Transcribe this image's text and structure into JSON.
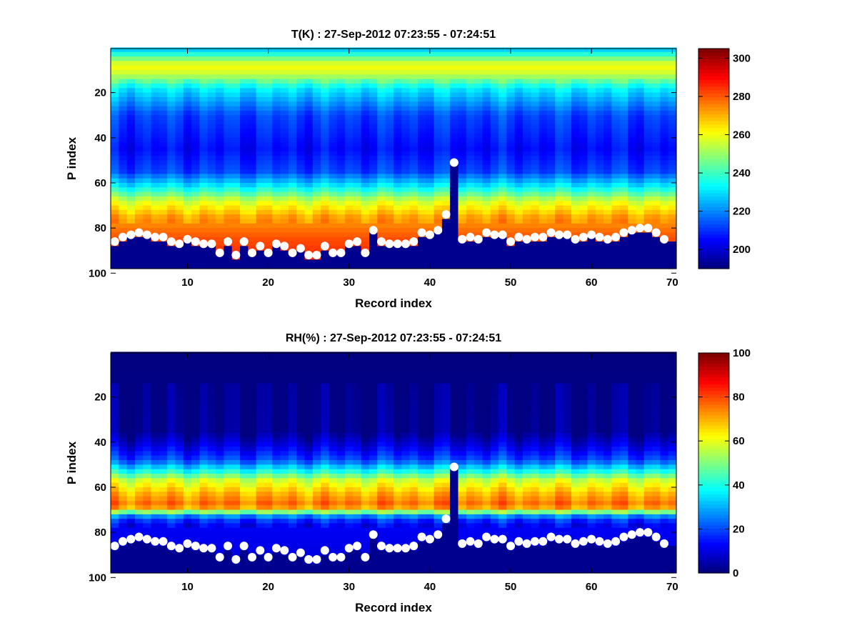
{
  "chart_data": [
    {
      "type": "heatmap",
      "title": "T(K) : 27-Sep-2012 07:23:55 - 07:24:51",
      "xlabel": "Record index",
      "ylabel": "P index",
      "xlim": [
        0.5,
        70.5
      ],
      "ylim": [
        100,
        0
      ],
      "y_reversed": true,
      "xticks": [
        "10",
        "20",
        "30",
        "40",
        "50",
        "60",
        "70"
      ],
      "yticks": [
        "20",
        "40",
        "60",
        "80",
        "100"
      ],
      "colorbar": {
        "range": [
          190,
          305
        ],
        "ticks": [
          "200",
          "220",
          "240",
          "260",
          "280",
          "300"
        ]
      },
      "colormap": "jet",
      "below_surface_color": "#00008f",
      "profile_structure": [
        {
          "p_index": 1,
          "value": 228
        },
        {
          "p_index": 8,
          "value": 262
        },
        {
          "p_index": 12,
          "value": 255
        },
        {
          "p_index": 18,
          "value": 232
        },
        {
          "p_index": 30,
          "value": 212
        },
        {
          "p_index": 45,
          "value": 205
        },
        {
          "p_index": 55,
          "value": 212
        },
        {
          "p_index": 62,
          "value": 233
        },
        {
          "p_index": 68,
          "value": 257
        },
        {
          "p_index": 75,
          "value": 272
        },
        {
          "p_index": 85,
          "value": 282
        },
        {
          "p_index": 100,
          "value": 290
        }
      ],
      "surface_markers": {
        "x": [
          1,
          2,
          3,
          4,
          5,
          6,
          7,
          8,
          9,
          10,
          11,
          12,
          13,
          14,
          15,
          16,
          17,
          18,
          19,
          20,
          21,
          22,
          23,
          24,
          25,
          26,
          27,
          28,
          29,
          30,
          31,
          32,
          33,
          34,
          35,
          36,
          37,
          38,
          39,
          40,
          41,
          42,
          43,
          44,
          45,
          46,
          47,
          48,
          49,
          50,
          51,
          52,
          53,
          54,
          55,
          56,
          57,
          58,
          59,
          60,
          61,
          62,
          63,
          64,
          65,
          66,
          67,
          68,
          69
        ],
        "p_index": [
          86,
          84,
          83,
          82,
          83,
          84,
          84,
          86,
          87,
          85,
          86,
          87,
          87,
          91,
          86,
          92,
          86,
          91,
          88,
          91,
          87,
          88,
          91,
          89,
          92,
          92,
          88,
          91,
          91,
          87,
          86,
          91,
          81,
          86,
          87,
          87,
          87,
          86,
          82,
          83,
          81,
          74,
          51,
          85,
          84,
          85,
          82,
          83,
          83,
          86,
          84,
          85,
          84,
          84,
          82,
          83,
          83,
          85,
          84,
          83,
          84,
          85,
          84,
          82,
          81,
          80,
          80,
          82,
          85
        ]
      }
    },
    {
      "type": "heatmap",
      "title": "RH(%) : 27-Sep-2012 07:23:55 - 07:24:51",
      "xlabel": "Record index",
      "ylabel": "P index",
      "xlim": [
        0.5,
        70.5
      ],
      "ylim": [
        100,
        0
      ],
      "y_reversed": true,
      "xticks": [
        "10",
        "20",
        "30",
        "40",
        "50",
        "60",
        "70"
      ],
      "yticks": [
        "20",
        "40",
        "60",
        "80",
        "100"
      ],
      "colorbar": {
        "range": [
          0,
          100
        ],
        "ticks": [
          "0",
          "20",
          "40",
          "60",
          "80",
          "100"
        ]
      },
      "colormap": "jet",
      "below_surface_color": "#00008f",
      "profile_structure": [
        {
          "p_index": 1,
          "value": 0
        },
        {
          "p_index": 35,
          "value": 1
        },
        {
          "p_index": 42,
          "value": 10
        },
        {
          "p_index": 48,
          "value": 20
        },
        {
          "p_index": 53,
          "value": 40
        },
        {
          "p_index": 57,
          "value": 58
        },
        {
          "p_index": 63,
          "value": 70
        },
        {
          "p_index": 67,
          "value": 76
        },
        {
          "p_index": 70,
          "value": 70
        },
        {
          "p_index": 72,
          "value": 30
        },
        {
          "p_index": 76,
          "value": 12
        },
        {
          "p_index": 100,
          "value": 8
        }
      ],
      "surface_markers": {
        "x": [
          1,
          2,
          3,
          4,
          5,
          6,
          7,
          8,
          9,
          10,
          11,
          12,
          13,
          14,
          15,
          16,
          17,
          18,
          19,
          20,
          21,
          22,
          23,
          24,
          25,
          26,
          27,
          28,
          29,
          30,
          31,
          32,
          33,
          34,
          35,
          36,
          37,
          38,
          39,
          40,
          41,
          42,
          43,
          44,
          45,
          46,
          47,
          48,
          49,
          50,
          51,
          52,
          53,
          54,
          55,
          56,
          57,
          58,
          59,
          60,
          61,
          62,
          63,
          64,
          65,
          66,
          67,
          68,
          69
        ],
        "p_index": [
          86,
          84,
          83,
          82,
          83,
          84,
          84,
          86,
          87,
          85,
          86,
          87,
          87,
          91,
          86,
          92,
          86,
          91,
          88,
          91,
          87,
          88,
          91,
          89,
          92,
          92,
          88,
          91,
          91,
          87,
          86,
          91,
          81,
          86,
          87,
          87,
          87,
          86,
          82,
          83,
          81,
          74,
          51,
          85,
          84,
          85,
          82,
          83,
          83,
          86,
          84,
          85,
          84,
          84,
          82,
          83,
          83,
          85,
          84,
          83,
          84,
          85,
          84,
          82,
          81,
          80,
          80,
          82,
          85
        ]
      }
    }
  ]
}
